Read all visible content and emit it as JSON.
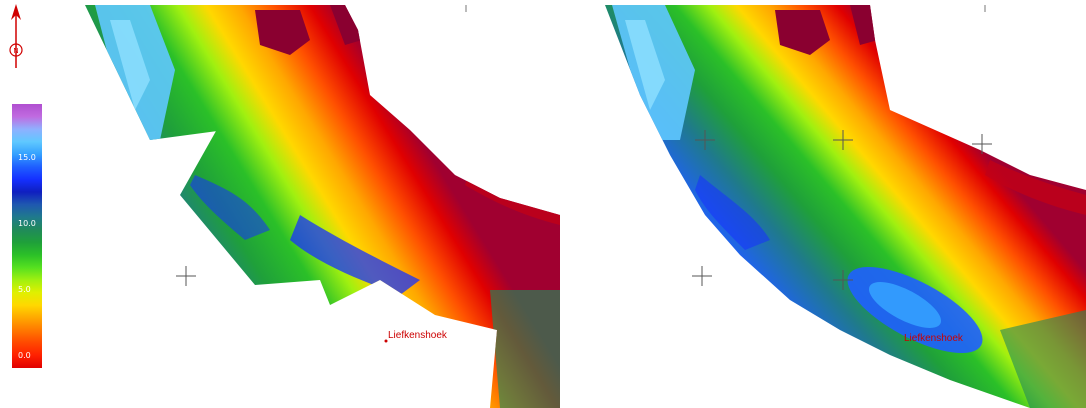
{
  "north_arrow": {
    "icon": "north-arrow-icon",
    "letter": "N",
    "color": "#d00000"
  },
  "legend": {
    "ticks": [
      "15.0",
      "10.0",
      "5.0",
      "0.0"
    ],
    "tick_values": [
      15,
      10,
      5,
      0
    ],
    "range": [
      -1,
      19
    ],
    "stops": [
      "#b04fd0",
      "#c06be0",
      "#8fb0ff",
      "#5fc8ff",
      "#34a0ff",
      "#1f5fff",
      "#1530ff",
      "#0f1fc0",
      "#1f58b0",
      "#1f7a8c",
      "#208a5a",
      "#1fa03a",
      "#2bc028",
      "#55e020",
      "#a0f010",
      "#e0f000",
      "#ffd800",
      "#ffa800",
      "#ff7800",
      "#ff4800",
      "#ff2000",
      "#e00000"
    ]
  },
  "maps": [
    {
      "id": "left",
      "place_label": "Liefkenshoek"
    },
    {
      "id": "right",
      "place_label": "Liefkenshoek"
    }
  ]
}
